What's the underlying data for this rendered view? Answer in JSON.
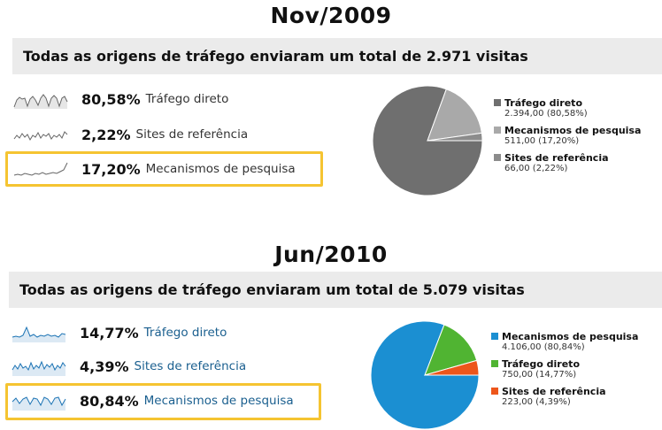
{
  "period1": {
    "title": "Nov/2009",
    "summary": "Todas as origens de tráfego enviaram um total de 2.971 visitas",
    "rows": [
      {
        "pct": "80,58%",
        "label": "Tráfego direto"
      },
      {
        "pct": "2,22%",
        "label": "Sites de referência"
      },
      {
        "pct": "17,20%",
        "label": "Mecanismos de pesquisa"
      }
    ],
    "legend": [
      {
        "name": "Tráfego direto",
        "value": "2.394,00 (80,58%)",
        "color": "#6f6f6f"
      },
      {
        "name": "Mecanismos de pesquisa",
        "value": "511,00 (17,20%)",
        "color": "#a9a9a9"
      },
      {
        "name": "Sites de referência",
        "value": "66,00 (2,22%)",
        "color": "#8c8c8c"
      }
    ]
  },
  "period2": {
    "title": "Jun/2010",
    "summary": "Todas as origens de tráfego enviaram um total de 5.079 visitas",
    "rows": [
      {
        "pct": "14,77%",
        "label": "Tráfego direto"
      },
      {
        "pct": "4,39%",
        "label": "Sites de referência"
      },
      {
        "pct": "80,84%",
        "label": "Mecanismos de pesquisa"
      }
    ],
    "legend": [
      {
        "name": "Mecanismos de pesquisa",
        "value": "4.106,00 (80,84%)",
        "color": "#1b8fd2"
      },
      {
        "name": "Tráfego direto",
        "value": "750,00 (14,77%)",
        "color": "#50b432"
      },
      {
        "name": "Sites de referência",
        "value": "223,00 (4,39%)",
        "color": "#ed561b"
      }
    ]
  },
  "chart_data": [
    {
      "type": "pie",
      "categories": [
        "Tráfego direto",
        "Mecanismos de pesquisa",
        "Sites de referência"
      ],
      "values": [
        2394,
        511,
        66
      ],
      "colors": [
        "#6f6f6f",
        "#a9a9a9",
        "#8c8c8c"
      ]
    },
    {
      "type": "pie",
      "categories": [
        "Mecanismos de pesquisa",
        "Tráfego direto",
        "Sites de referência"
      ],
      "values": [
        4106,
        750,
        223
      ],
      "colors": [
        "#1b8fd2",
        "#50b432",
        "#ed561b"
      ]
    }
  ]
}
